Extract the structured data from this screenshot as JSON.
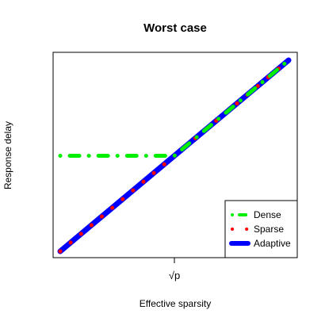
{
  "chart_data": {
    "type": "line",
    "title": "Worst case",
    "xlabel": "Effective sparsity",
    "ylabel": "Response delay",
    "xlim": [
      0,
      1
    ],
    "ylim": [
      0,
      1
    ],
    "x_ticks": [
      {
        "value": 0.5,
        "label": "√p"
      }
    ],
    "y_ticks": [],
    "grid": false,
    "legend_position": "bottom-right",
    "series": [
      {
        "name": "Adaptive",
        "color": "#0000ff",
        "style": "thick-line",
        "x": [
          0.0,
          1.0
        ],
        "y": [
          0.0,
          1.0
        ]
      },
      {
        "name": "Sparse",
        "color": "#ff0000",
        "style": "dotted",
        "x": [
          0.0,
          0.05,
          0.1,
          0.15,
          0.2,
          0.25,
          0.3,
          0.35,
          0.4,
          0.45,
          0.5,
          0.55,
          0.6,
          0.65,
          0.7,
          0.75,
          0.8,
          0.85,
          0.9,
          0.95,
          1.0
        ],
        "y": [
          0.0,
          0.05,
          0.1,
          0.15,
          0.2,
          0.25,
          0.3,
          0.35,
          0.4,
          0.45,
          0.5,
          0.55,
          0.6,
          0.65,
          0.7,
          0.75,
          0.8,
          0.85,
          0.9,
          0.95,
          1.0
        ]
      },
      {
        "name": "Dense",
        "color": "#00ee00",
        "style": "dash-dot",
        "x": [
          0.0,
          0.05,
          0.1,
          0.15,
          0.2,
          0.25,
          0.3,
          0.35,
          0.4,
          0.45,
          0.5,
          0.55,
          0.6,
          0.65,
          0.7,
          0.75,
          0.8,
          0.85,
          0.9,
          0.95,
          1.0
        ],
        "y": [
          0.5,
          0.5,
          0.5,
          0.5,
          0.5,
          0.5,
          0.5,
          0.5,
          0.5,
          0.5,
          0.5,
          0.55,
          0.6,
          0.65,
          0.7,
          0.75,
          0.8,
          0.85,
          0.9,
          0.95,
          1.0
        ]
      }
    ],
    "legend": [
      {
        "label": "Dense",
        "color": "#00ee00",
        "style": "dash-dot"
      },
      {
        "label": "Sparse",
        "color": "#ff0000",
        "style": "dotted"
      },
      {
        "label": "Adaptive",
        "color": "#0000ff",
        "style": "thick-line"
      }
    ]
  }
}
